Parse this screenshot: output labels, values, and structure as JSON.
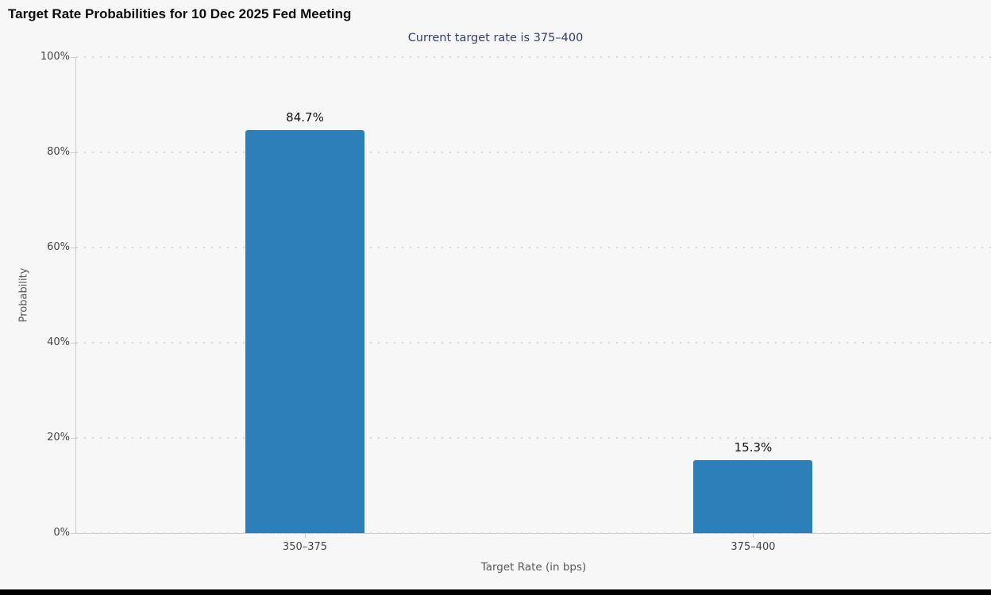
{
  "page": {
    "background_color": "#f7f7f7",
    "footer_bar_color": "#000000"
  },
  "chart_data": {
    "type": "bar",
    "title": "Target Rate Probabilities for 10 Dec 2025 Fed Meeting",
    "subtitle": "Current target rate is 375–400",
    "categories": [
      "350–375",
      "375–400"
    ],
    "values": [
      84.7,
      15.3
    ],
    "value_labels": [
      "84.7%",
      "15.3%"
    ],
    "xlabel": "Target Rate (in bps)",
    "ylabel": "Probability",
    "y_ticks": [
      "0%",
      "20%",
      "40%",
      "60%",
      "80%",
      "100%"
    ],
    "ylim": [
      0,
      100
    ],
    "grid": "horizontal-dotted",
    "legend": "none",
    "bar_color": "#2c7fb9"
  }
}
